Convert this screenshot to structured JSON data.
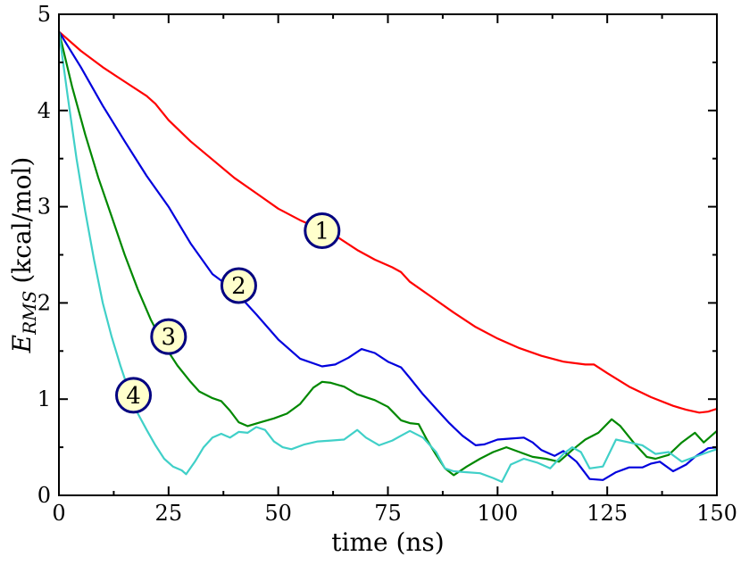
{
  "chart_data": {
    "type": "line",
    "title": "",
    "xlabel": "time (ns)",
    "ylabel": {
      "main": "E",
      "subscript": "RMS",
      "units": "(kcal/mol)"
    },
    "xlim": [
      0,
      150
    ],
    "ylim": [
      0,
      5
    ],
    "xticks": [
      0,
      25,
      50,
      75,
      100,
      125,
      150
    ],
    "yticks": [
      0,
      1,
      2,
      3,
      4,
      5
    ],
    "grid": false,
    "series": [
      {
        "name": "1",
        "color": "#ff0000",
        "label_at": [
          60,
          2.75
        ],
        "points": [
          [
            0,
            4.82
          ],
          [
            5,
            4.62
          ],
          [
            10,
            4.45
          ],
          [
            15,
            4.3
          ],
          [
            20,
            4.15
          ],
          [
            22,
            4.07
          ],
          [
            25,
            3.9
          ],
          [
            30,
            3.68
          ],
          [
            35,
            3.49
          ],
          [
            40,
            3.3
          ],
          [
            45,
            3.14
          ],
          [
            50,
            2.98
          ],
          [
            55,
            2.86
          ],
          [
            58,
            2.8
          ],
          [
            63,
            2.7
          ],
          [
            68,
            2.55
          ],
          [
            72,
            2.45
          ],
          [
            76,
            2.37
          ],
          [
            78,
            2.32
          ],
          [
            80,
            2.22
          ],
          [
            85,
            2.06
          ],
          [
            90,
            1.9
          ],
          [
            95,
            1.75
          ],
          [
            100,
            1.63
          ],
          [
            105,
            1.53
          ],
          [
            110,
            1.45
          ],
          [
            115,
            1.39
          ],
          [
            120,
            1.36
          ],
          [
            122,
            1.36
          ],
          [
            125,
            1.27
          ],
          [
            130,
            1.13
          ],
          [
            135,
            1.02
          ],
          [
            140,
            0.93
          ],
          [
            143,
            0.89
          ],
          [
            146,
            0.86
          ],
          [
            148,
            0.87
          ],
          [
            150,
            0.9
          ]
        ]
      },
      {
        "name": "2",
        "color": "#0000dd",
        "label_at": [
          41,
          2.18
        ],
        "points": [
          [
            0,
            4.82
          ],
          [
            5,
            4.45
          ],
          [
            10,
            4.05
          ],
          [
            15,
            3.68
          ],
          [
            20,
            3.32
          ],
          [
            25,
            3.0
          ],
          [
            30,
            2.62
          ],
          [
            35,
            2.3
          ],
          [
            40,
            2.13
          ],
          [
            45,
            1.88
          ],
          [
            50,
            1.62
          ],
          [
            55,
            1.42
          ],
          [
            60,
            1.34
          ],
          [
            63,
            1.36
          ],
          [
            66,
            1.43
          ],
          [
            69,
            1.52
          ],
          [
            72,
            1.48
          ],
          [
            75,
            1.39
          ],
          [
            78,
            1.33
          ],
          [
            80,
            1.22
          ],
          [
            83,
            1.05
          ],
          [
            86,
            0.9
          ],
          [
            89,
            0.75
          ],
          [
            92,
            0.62
          ],
          [
            95,
            0.52
          ],
          [
            97,
            0.53
          ],
          [
            100,
            0.58
          ],
          [
            103,
            0.59
          ],
          [
            106,
            0.6
          ],
          [
            108,
            0.55
          ],
          [
            110,
            0.47
          ],
          [
            113,
            0.41
          ],
          [
            115,
            0.46
          ],
          [
            118,
            0.35
          ],
          [
            121,
            0.17
          ],
          [
            124,
            0.16
          ],
          [
            127,
            0.24
          ],
          [
            130,
            0.29
          ],
          [
            133,
            0.29
          ],
          [
            135,
            0.33
          ],
          [
            137,
            0.35
          ],
          [
            140,
            0.25
          ],
          [
            143,
            0.32
          ],
          [
            145,
            0.4
          ],
          [
            148,
            0.49
          ],
          [
            150,
            0.5
          ]
        ]
      },
      {
        "name": "3",
        "color": "#008800",
        "label_at": [
          25,
          1.65
        ],
        "points": [
          [
            0,
            4.82
          ],
          [
            3,
            4.25
          ],
          [
            6,
            3.75
          ],
          [
            9,
            3.3
          ],
          [
            12,
            2.9
          ],
          [
            15,
            2.5
          ],
          [
            18,
            2.14
          ],
          [
            21,
            1.82
          ],
          [
            24,
            1.56
          ],
          [
            27,
            1.35
          ],
          [
            30,
            1.18
          ],
          [
            32,
            1.08
          ],
          [
            35,
            1.01
          ],
          [
            37,
            0.98
          ],
          [
            39,
            0.88
          ],
          [
            41,
            0.76
          ],
          [
            43,
            0.72
          ],
          [
            46,
            0.76
          ],
          [
            49,
            0.8
          ],
          [
            52,
            0.85
          ],
          [
            55,
            0.95
          ],
          [
            58,
            1.12
          ],
          [
            60,
            1.18
          ],
          [
            62,
            1.17
          ],
          [
            65,
            1.13
          ],
          [
            68,
            1.05
          ],
          [
            72,
            0.99
          ],
          [
            75,
            0.92
          ],
          [
            78,
            0.78
          ],
          [
            80,
            0.75
          ],
          [
            82,
            0.74
          ],
          [
            84,
            0.57
          ],
          [
            86,
            0.42
          ],
          [
            88,
            0.28
          ],
          [
            90,
            0.21
          ],
          [
            93,
            0.3
          ],
          [
            96,
            0.38
          ],
          [
            99,
            0.45
          ],
          [
            102,
            0.5
          ],
          [
            105,
            0.45
          ],
          [
            108,
            0.4
          ],
          [
            111,
            0.38
          ],
          [
            114,
            0.35
          ],
          [
            117,
            0.47
          ],
          [
            120,
            0.58
          ],
          [
            123,
            0.65
          ],
          [
            126,
            0.79
          ],
          [
            128,
            0.72
          ],
          [
            131,
            0.55
          ],
          [
            134,
            0.4
          ],
          [
            136,
            0.38
          ],
          [
            139,
            0.42
          ],
          [
            142,
            0.55
          ],
          [
            145,
            0.65
          ],
          [
            147,
            0.55
          ],
          [
            150,
            0.67
          ]
        ]
      },
      {
        "name": "4",
        "color": "#40d0c8",
        "label_at": [
          17,
          1.04
        ],
        "points": [
          [
            0,
            4.82
          ],
          [
            2,
            4.15
          ],
          [
            4,
            3.5
          ],
          [
            6,
            2.95
          ],
          [
            8,
            2.45
          ],
          [
            10,
            2.0
          ],
          [
            12,
            1.65
          ],
          [
            14,
            1.35
          ],
          [
            16,
            1.08
          ],
          [
            18,
            0.85
          ],
          [
            20,
            0.68
          ],
          [
            22,
            0.52
          ],
          [
            24,
            0.38
          ],
          [
            26,
            0.3
          ],
          [
            28,
            0.26
          ],
          [
            29,
            0.22
          ],
          [
            31,
            0.35
          ],
          [
            33,
            0.5
          ],
          [
            35,
            0.6
          ],
          [
            37,
            0.64
          ],
          [
            39,
            0.6
          ],
          [
            41,
            0.66
          ],
          [
            43,
            0.65
          ],
          [
            45,
            0.71
          ],
          [
            47,
            0.68
          ],
          [
            49,
            0.56
          ],
          [
            51,
            0.5
          ],
          [
            53,
            0.48
          ],
          [
            56,
            0.53
          ],
          [
            59,
            0.56
          ],
          [
            62,
            0.57
          ],
          [
            65,
            0.58
          ],
          [
            68,
            0.68
          ],
          [
            70,
            0.6
          ],
          [
            73,
            0.52
          ],
          [
            76,
            0.57
          ],
          [
            78,
            0.62
          ],
          [
            80,
            0.67
          ],
          [
            83,
            0.6
          ],
          [
            86,
            0.45
          ],
          [
            88,
            0.28
          ],
          [
            90,
            0.25
          ],
          [
            93,
            0.24
          ],
          [
            96,
            0.23
          ],
          [
            99,
            0.18
          ],
          [
            101,
            0.14
          ],
          [
            103,
            0.32
          ],
          [
            106,
            0.38
          ],
          [
            109,
            0.34
          ],
          [
            112,
            0.28
          ],
          [
            115,
            0.43
          ],
          [
            117,
            0.5
          ],
          [
            119,
            0.45
          ],
          [
            121,
            0.28
          ],
          [
            124,
            0.3
          ],
          [
            127,
            0.58
          ],
          [
            130,
            0.55
          ],
          [
            133,
            0.52
          ],
          [
            136,
            0.43
          ],
          [
            139,
            0.45
          ],
          [
            142,
            0.35
          ],
          [
            145,
            0.4
          ],
          [
            148,
            0.45
          ],
          [
            150,
            0.48
          ]
        ]
      }
    ]
  }
}
